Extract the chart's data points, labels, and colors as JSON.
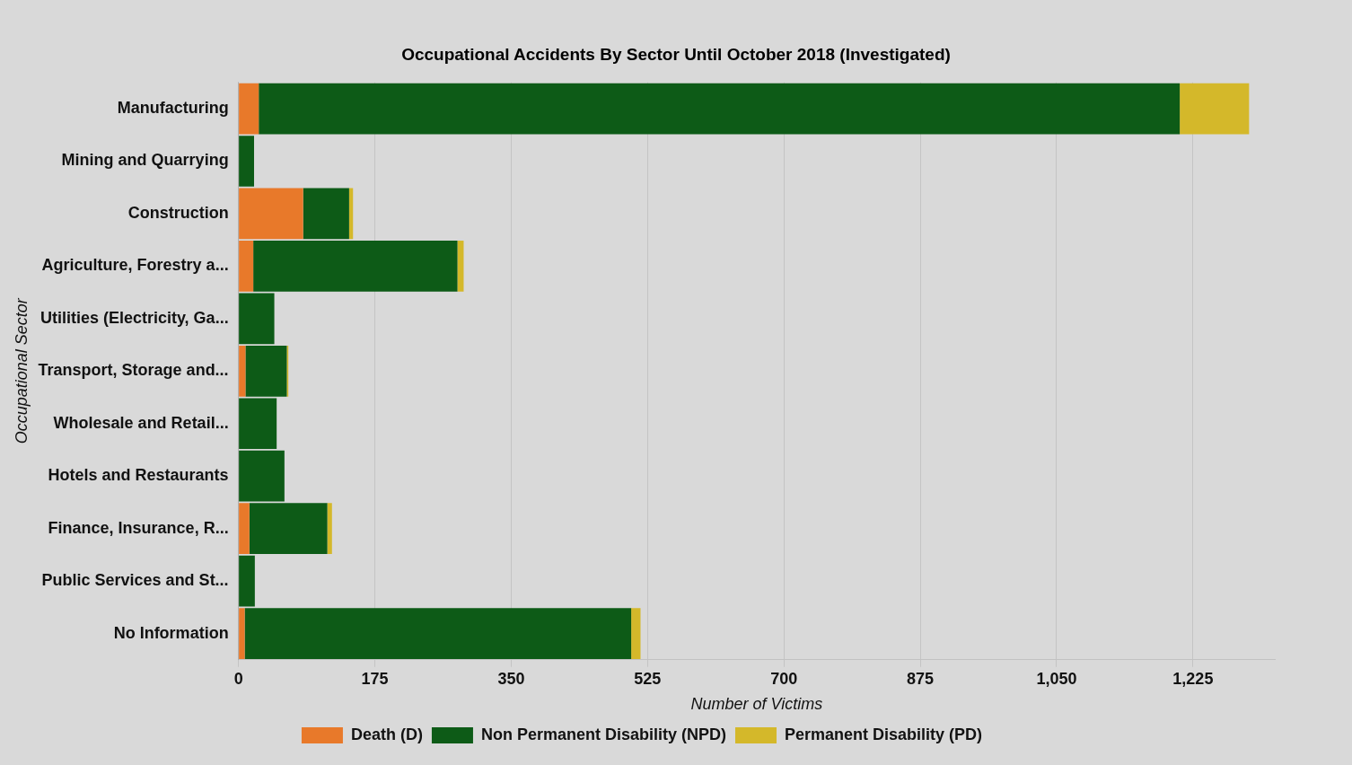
{
  "chart_data": {
    "type": "bar",
    "orientation": "horizontal",
    "stacked": true,
    "title": "Occupational Accidents By Sector Until October 2018 (Investigated)",
    "xlabel": "Number of Victims",
    "ylabel": "Occupational Sector",
    "categories": [
      "Manufacturing",
      "Mining and Quarrying",
      "Construction",
      "Agriculture, Forestry a...",
      "Utilities (Electricity, Ga...",
      "Transport, Storage and...",
      "Wholesale and Retail...",
      "Hotels and Restaurants",
      "Finance, Insurance, R...",
      "Public Services and St...",
      "No Information"
    ],
    "series": [
      {
        "name": "Death (D)",
        "color": "#e8792a",
        "values": [
          26,
          0,
          83,
          19,
          0,
          9,
          0,
          0,
          14,
          0,
          8
        ]
      },
      {
        "name": "Non Permanent Disability (NPD)",
        "color": "#0d5b17",
        "values": [
          1182,
          20,
          59,
          262,
          46,
          53,
          49,
          59,
          100,
          21,
          496
        ]
      },
      {
        "name": "Permanent Disability (PD)",
        "color": "#d4b82a",
        "values": [
          89,
          0,
          5,
          8,
          0,
          2,
          0,
          0,
          6,
          0,
          12
        ]
      }
    ],
    "xlim": [
      0,
      1330
    ],
    "xticks": [
      0,
      175,
      350,
      525,
      700,
      875,
      {
        "value": 1050,
        "label": "1,050"
      },
      {
        "value": 1225,
        "label": "1,225"
      }
    ],
    "grid": "x",
    "legend": "bottom"
  }
}
